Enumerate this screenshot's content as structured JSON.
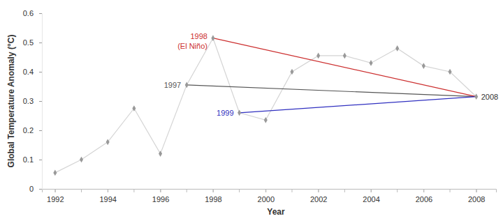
{
  "chart_data": {
    "type": "line",
    "x_label": "Year",
    "y_label": "Global Temperature Anomaly (°C)",
    "x": [
      1992,
      1993,
      1994,
      1995,
      1996,
      1997,
      1998,
      1999,
      2000,
      2001,
      2002,
      2003,
      2004,
      2005,
      2006,
      2007,
      2008
    ],
    "values": [
      0.055,
      0.1,
      0.16,
      0.275,
      0.12,
      0.355,
      0.515,
      0.26,
      0.235,
      0.4,
      0.455,
      0.455,
      0.43,
      0.48,
      0.42,
      0.4,
      0.315
    ],
    "color": "#d4d4d4",
    "marker": "diamond",
    "xlim": [
      1991.5,
      2008.75
    ],
    "xticks": [
      1992,
      1994,
      1996,
      1998,
      2000,
      2002,
      2004,
      2006,
      2008
    ],
    "ylim": [
      0,
      0.6
    ],
    "yticks": [
      0,
      0.1,
      0.2,
      0.3,
      0.4,
      0.5,
      0.6
    ],
    "grid": false,
    "annotations": [
      {
        "from": 1997,
        "to": 2008,
        "label": "1997",
        "color": "#555555"
      },
      {
        "from": 1998,
        "to": 2008,
        "label": "1998",
        "note": "(El Niño)",
        "color": "#cc2f2f"
      },
      {
        "from": 1999,
        "to": 2008,
        "label": "1999",
        "color": "#3030c0"
      }
    ],
    "end_label": "2008"
  }
}
